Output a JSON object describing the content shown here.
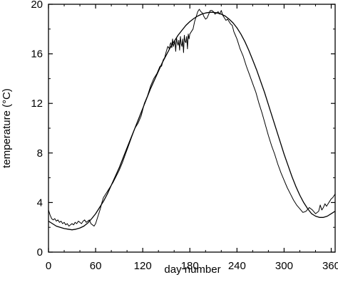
{
  "chart_data": {
    "type": "line",
    "title": "",
    "xlabel": "day number",
    "ylabel": "temperature (°C)",
    "xlim": [
      0,
      365
    ],
    "ylim": [
      0,
      20
    ],
    "x_ticks": [
      0,
      60,
      120,
      180,
      240,
      300,
      360
    ],
    "x_tick_labels": [
      "0",
      "60",
      "120",
      "180",
      "240",
      "300",
      "360"
    ],
    "y_ticks": [
      0,
      4,
      8,
      12,
      16,
      20
    ],
    "y_tick_labels": [
      "0",
      "4",
      "8",
      "12",
      "16",
      "20"
    ],
    "grid": false,
    "legend": "none",
    "series": [
      {
        "style": "observed",
        "x": [
          0,
          2,
          4,
          6,
          8,
          10,
          12,
          14,
          16,
          18,
          20,
          22,
          24,
          26,
          28,
          30,
          32,
          34,
          36,
          38,
          40,
          42,
          44,
          46,
          48,
          50,
          52,
          54,
          56,
          58,
          60,
          62,
          64,
          66,
          68,
          70,
          74,
          78,
          82,
          86,
          90,
          94,
          98,
          102,
          106,
          110,
          114,
          118,
          122,
          126,
          130,
          134,
          138,
          142,
          144,
          146,
          148,
          150,
          152,
          154,
          155,
          156,
          157,
          158,
          159,
          160,
          161,
          162,
          163,
          164,
          165,
          166,
          167,
          168,
          169,
          170,
          171,
          172,
          173,
          174,
          175,
          176,
          177,
          178,
          179,
          180,
          182,
          184,
          186,
          188,
          190,
          192,
          194,
          196,
          198,
          200,
          202,
          204,
          206,
          208,
          210,
          212,
          214,
          216,
          218,
          220,
          222,
          224,
          226,
          228,
          230,
          232,
          234,
          236,
          238,
          240,
          244,
          248,
          252,
          256,
          260,
          264,
          268,
          272,
          276,
          280,
          284,
          288,
          292,
          296,
          300,
          304,
          308,
          312,
          316,
          320,
          324,
          328,
          332,
          336,
          340,
          344,
          346,
          348,
          350,
          352,
          354,
          356,
          358,
          360,
          362,
          364,
          365
        ],
        "y": [
          3.4,
          3.0,
          2.7,
          2.6,
          2.7,
          2.5,
          2.6,
          2.4,
          2.5,
          2.3,
          2.4,
          2.2,
          2.3,
          2.1,
          2.2,
          2.3,
          2.2,
          2.4,
          2.3,
          2.5,
          2.4,
          2.3,
          2.5,
          2.6,
          2.4,
          2.5,
          2.6,
          2.3,
          2.2,
          2.1,
          2.3,
          2.7,
          3.1,
          3.5,
          4.0,
          4.4,
          4.8,
          5.2,
          5.6,
          6.1,
          6.6,
          7.2,
          7.9,
          8.6,
          9.3,
          10.0,
          10.4,
          11.0,
          12.0,
          12.6,
          13.4,
          14.0,
          14.4,
          15.0,
          15.0,
          15.5,
          15.7,
          16.2,
          16.6,
          16.4,
          16.8,
          16.9,
          16.5,
          17.2,
          16.6,
          16.8,
          17.0,
          16.2,
          17.3,
          16.9,
          16.7,
          17.1,
          16.3,
          17.4,
          16.8,
          16.6,
          17.2,
          16.1,
          17.5,
          17.0,
          16.9,
          17.4,
          16.4,
          17.6,
          17.2,
          17.6,
          17.8,
          18.0,
          18.6,
          19.0,
          19.4,
          19.6,
          19.4,
          19.3,
          19.0,
          18.8,
          18.9,
          19.2,
          19.5,
          19.5,
          19.4,
          19.2,
          19.3,
          19.4,
          19.2,
          19.5,
          19.1,
          18.9,
          18.7,
          18.8,
          18.6,
          18.4,
          18.3,
          17.8,
          17.5,
          17.2,
          16.4,
          15.8,
          15.0,
          14.3,
          13.6,
          12.9,
          12.0,
          11.2,
          10.3,
          9.4,
          8.6,
          7.9,
          7.1,
          6.4,
          5.8,
          5.2,
          4.7,
          4.2,
          3.8,
          3.5,
          3.2,
          3.3,
          3.6,
          3.4,
          3.1,
          3.3,
          3.8,
          3.4,
          3.6,
          3.9,
          3.7,
          3.9,
          4.1,
          4.3,
          4.4,
          4.6,
          4.7
        ]
      },
      {
        "style": "fitted",
        "x": [
          0,
          5,
          10,
          15,
          20,
          25,
          30,
          35,
          40,
          45,
          50,
          55,
          60,
          65,
          70,
          75,
          80,
          85,
          90,
          95,
          100,
          105,
          110,
          115,
          120,
          125,
          130,
          135,
          140,
          145,
          150,
          155,
          160,
          165,
          170,
          175,
          180,
          185,
          190,
          195,
          200,
          205,
          210,
          215,
          220,
          225,
          230,
          235,
          240,
          245,
          250,
          255,
          260,
          265,
          270,
          275,
          280,
          285,
          290,
          295,
          300,
          305,
          310,
          315,
          320,
          325,
          330,
          335,
          340,
          345,
          350,
          355,
          360,
          365
        ],
        "y": [
          2.5,
          2.3,
          2.1,
          2.0,
          1.9,
          1.85,
          1.8,
          1.85,
          1.95,
          2.1,
          2.35,
          2.7,
          3.1,
          3.6,
          4.1,
          4.7,
          5.4,
          6.1,
          6.8,
          7.6,
          8.4,
          9.2,
          10.0,
          10.8,
          11.6,
          12.4,
          13.2,
          13.9,
          14.6,
          15.3,
          15.9,
          16.5,
          17.0,
          17.5,
          17.9,
          18.3,
          18.6,
          18.85,
          19.05,
          19.2,
          19.3,
          19.35,
          19.35,
          19.3,
          19.2,
          19.05,
          18.8,
          18.5,
          18.1,
          17.6,
          17.0,
          16.3,
          15.5,
          14.7,
          13.8,
          12.9,
          11.9,
          10.9,
          9.9,
          8.9,
          7.9,
          7.0,
          6.1,
          5.3,
          4.6,
          4.0,
          3.5,
          3.1,
          2.9,
          2.8,
          2.8,
          2.9,
          3.1,
          3.3
        ]
      }
    ]
  }
}
